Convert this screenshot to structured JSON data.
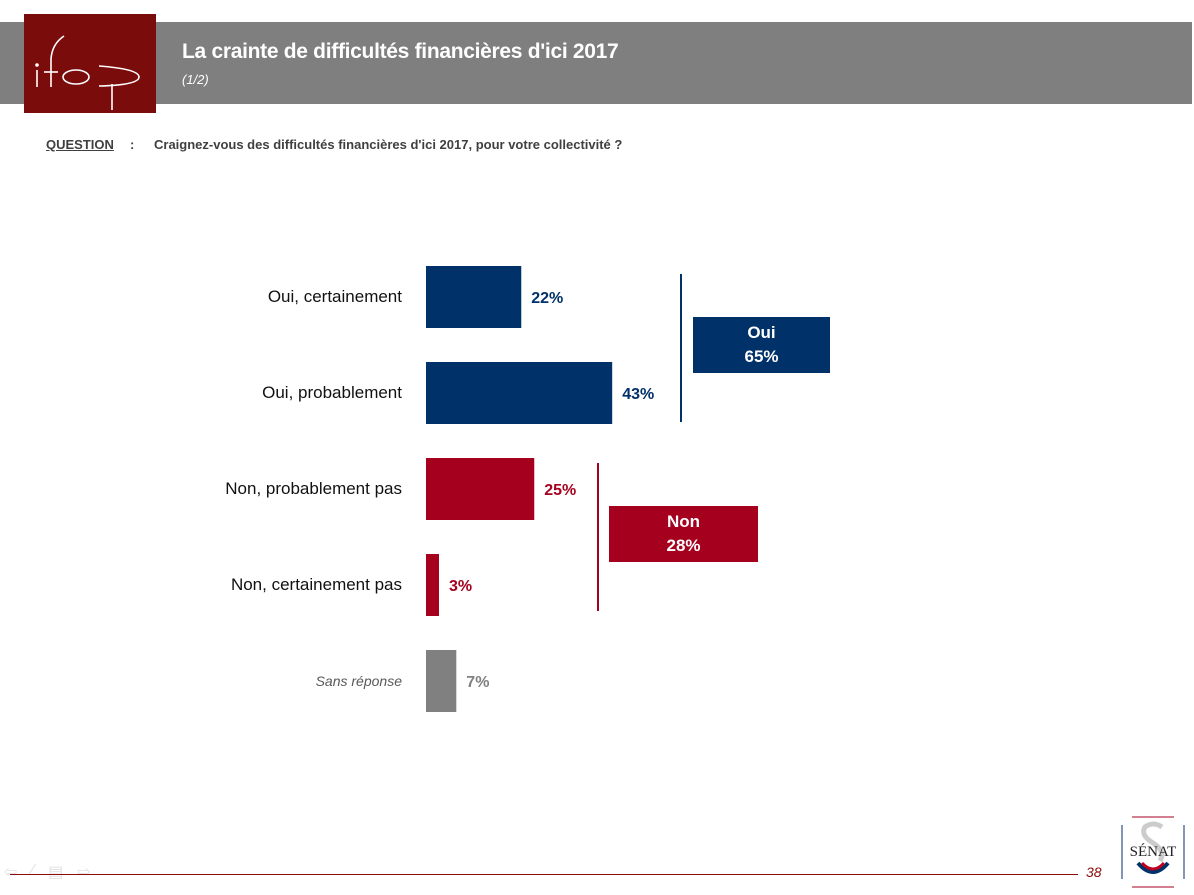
{
  "header": {
    "logo_text": "ifop",
    "title": "La crainte de difficultés financières d'ici 2017",
    "subtitle": "(1/2)"
  },
  "question": {
    "label": "QUESTION",
    "colon": ":",
    "text": "Craignez-vous des difficultés financières d'ici 2017, pour votre collectivité ?"
  },
  "colors": {
    "oui": "#003169",
    "non": "#a6001f",
    "sans_reponse": "#808080",
    "header_band": "#7f7f7f",
    "logo_bg": "#7b0c0c"
  },
  "chart_data": {
    "type": "bar",
    "orientation": "horizontal",
    "title": "",
    "xlabel": "",
    "ylabel": "",
    "xlim": [
      0,
      100
    ],
    "grid": false,
    "categories": [
      "Oui, certainement",
      "Oui, probablement",
      "Non, probablement pas",
      "Non, certainement pas",
      "Sans réponse"
    ],
    "values": [
      22,
      43,
      25,
      3,
      7
    ],
    "value_labels": [
      "22%",
      "43%",
      "25%",
      "3%",
      "7%"
    ],
    "groups": [
      "oui",
      "oui",
      "non",
      "non",
      "sans_reponse"
    ],
    "totals": [
      {
        "name": "Oui",
        "value": 65,
        "label": "65%",
        "group": "oui"
      },
      {
        "name": "Non",
        "value": 28,
        "label": "28%",
        "group": "non"
      }
    ]
  },
  "footer": {
    "page_number": "38",
    "senat_logo_text": "SÉNAT"
  }
}
